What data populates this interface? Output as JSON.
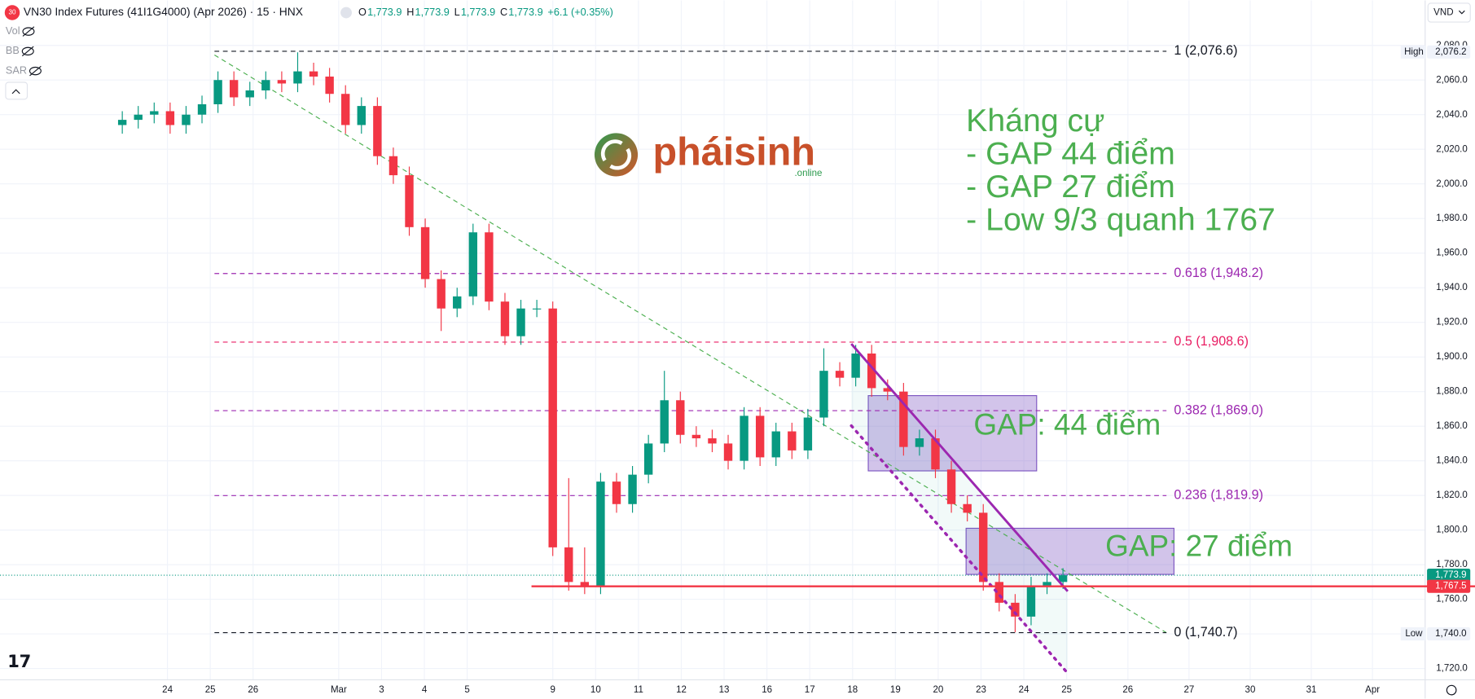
{
  "chart_data": {
    "type": "candlestick",
    "title": "VN30 Index Futures (41I1G4000) (Apr 2026) · 15 · HNX",
    "symbol_badge": "30",
    "legend_values": [
      {
        "key": "O",
        "text": "1,773.9"
      },
      {
        "key": "H",
        "text": "1,773.9"
      },
      {
        "key": "L",
        "text": "1,773.9"
      },
      {
        "key": "C",
        "text": "1,773.9"
      }
    ],
    "change": "+6.1 (+0.35%)",
    "indicators": [
      "Vol",
      "BB",
      "SAR"
    ],
    "currency": "VND",
    "up_color": "#089981",
    "down_color": "#f23645",
    "categories": [
      "24",
      "25",
      "26",
      null,
      "Mar",
      "3",
      "4",
      "5",
      null,
      "9",
      "10",
      "11",
      "12",
      "13",
      "16",
      "17",
      "18",
      "19",
      "20",
      "23",
      "24",
      "25",
      "26",
      "27",
      "30",
      "31",
      "Apr"
    ],
    "open": [
      2034,
      2037,
      2040,
      2042,
      2034,
      2040,
      2046,
      2060,
      2050,
      2054,
      2060,
      2058,
      2065,
      2062,
      2052,
      2034,
      2045,
      2016,
      2005,
      1975,
      1945,
      1928,
      1935,
      1972,
      1932,
      1912,
      1928,
      1928,
      1790,
      1770,
      1768,
      1828,
      1815,
      1832,
      1850,
      1875,
      1855,
      1853,
      1850,
      1840,
      1866,
      1842,
      1857,
      1846,
      1865,
      1892,
      1888,
      1902,
      1882,
      1880,
      1848,
      1853,
      1835,
      1815,
      1810,
      1770,
      1758,
      1750,
      1768,
      1770
    ],
    "high": [
      2042,
      2045,
      2047,
      2047,
      2045,
      2051,
      2065,
      2065,
      2059,
      2065,
      2065,
      2076,
      2070,
      2067,
      2057,
      2050,
      2050,
      2021,
      2010,
      1980,
      1950,
      1940,
      1977,
      1977,
      1937,
      1933,
      1933,
      1932,
      1830,
      1790,
      1833,
      1833,
      1837,
      1855,
      1892,
      1880,
      1860,
      1858,
      1855,
      1871,
      1871,
      1862,
      1862,
      1870,
      1905,
      1897,
      1907,
      1907,
      1887,
      1885,
      1858,
      1858,
      1840,
      1820,
      1815,
      1775,
      1763,
      1773,
      1775,
      1778
    ],
    "low": [
      2029,
      2032,
      2035,
      2029,
      2029,
      2035,
      2041,
      2045,
      2045,
      2049,
      2053,
      2053,
      2057,
      2047,
      2029,
      2029,
      2011,
      2000,
      1970,
      1940,
      1915,
      1923,
      1930,
      1927,
      1907,
      1907,
      1923,
      1785,
      1765,
      1763,
      1763,
      1810,
      1810,
      1827,
      1845,
      1850,
      1848,
      1845,
      1835,
      1835,
      1837,
      1837,
      1841,
      1841,
      1860,
      1883,
      1883,
      1877,
      1875,
      1843,
      1843,
      1830,
      1810,
      1805,
      1765,
      1753,
      1741,
      1745,
      1763,
      1766
    ],
    "close": [
      2037,
      2040,
      2042,
      2034,
      2040,
      2046,
      2060,
      2050,
      2054,
      2060,
      2058,
      2065,
      2062,
      2052,
      2034,
      2045,
      2016,
      2005,
      1975,
      1945,
      1928,
      1935,
      1972,
      1932,
      1912,
      1928,
      1928,
      1790,
      1770,
      1768,
      1828,
      1815,
      1832,
      1850,
      1875,
      1855,
      1853,
      1850,
      1840,
      1866,
      1842,
      1857,
      1846,
      1865,
      1892,
      1888,
      1902,
      1882,
      1880,
      1848,
      1853,
      1835,
      1815,
      1810,
      1770,
      1758,
      1750,
      1768,
      1770,
      1773.9
    ],
    "ylim": [
      1713.5,
      2106
    ],
    "yticks": [
      {
        "value": 1720,
        "label": "1,720.0"
      },
      {
        "value": 1740,
        "label": "1,740.0"
      },
      {
        "value": 1760,
        "label": "1,760.0"
      },
      {
        "value": 1780,
        "label": "1,780.0"
      },
      {
        "value": 1800,
        "label": "1,800.0"
      },
      {
        "value": 1820,
        "label": "1,820.0"
      },
      {
        "value": 1840,
        "label": "1,840.0"
      },
      {
        "value": 1860,
        "label": "1,860.0"
      },
      {
        "value": 1880,
        "label": "1,880.0"
      },
      {
        "value": 1900,
        "label": "1,900.0"
      },
      {
        "value": 1920,
        "label": "1,920.0"
      },
      {
        "value": 1940,
        "label": "1,940.0"
      },
      {
        "value": 1960,
        "label": "1,960.0"
      },
      {
        "value": 1980,
        "label": "1,980.0"
      },
      {
        "value": 2000,
        "label": "2,000.0"
      },
      {
        "value": 2020,
        "label": "2,020.0"
      },
      {
        "value": 2040,
        "label": "2,040.0"
      },
      {
        "value": 2060,
        "label": "2,060.0"
      },
      {
        "value": 2080,
        "label": "2,080.0"
      }
    ],
    "grid": true,
    "fib_levels": [
      {
        "value": 2076.6,
        "label": "1 (2,076.6)",
        "color": "#131722"
      },
      {
        "value": 1948.2,
        "label": "0.618 (1,948.2)",
        "color": "#9c27b0"
      },
      {
        "value": 1908.6,
        "label": "0.5 (1,908.6)",
        "color": "#e91e63"
      },
      {
        "value": 1869.0,
        "label": "0.382 (1,869.0)",
        "color": "#9c27b0"
      },
      {
        "value": 1819.9,
        "label": "0.236 (1,819.9)",
        "color": "#9c27b0"
      },
      {
        "value": 1740.7,
        "label": "0 (1,740.7)",
        "color": "#131722"
      }
    ],
    "high_marker": {
      "name": "High",
      "value": 2076.2,
      "label": "2,076.2"
    },
    "low_marker": {
      "name": "Low",
      "value": 1740.0,
      "label": "1,740.0"
    },
    "last_price": {
      "value": 1773.9,
      "label": "1,773.9",
      "color": "#089981"
    },
    "support_line": {
      "value": 1767.5,
      "label": "1,767.5",
      "color": "#f23645"
    },
    "gap_labels": [
      "GAP: 44 điểm",
      "GAP: 27 điểm"
    ],
    "annotation": [
      "Kháng cự",
      "- GAP 44 điểm",
      "- GAP 27 điểm",
      "- Low 9/3 quanh 1767"
    ],
    "logo": {
      "name": "pháisinh",
      "suffix": ".online"
    }
  }
}
